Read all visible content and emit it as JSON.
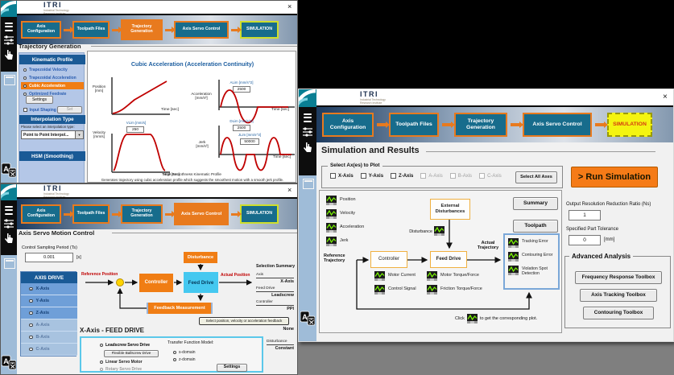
{
  "colors": {
    "accent_orange": "#E87A1E",
    "teal": "#176C8C",
    "navy_header": "#1A5A96",
    "feed_cyan": "#45C8F0",
    "sim_yellow": "#F4F410",
    "signal_red": "#CC0000",
    "plot_green": "#7CFC00"
  },
  "brand": {
    "name": "ITRI",
    "sub1": "Industrial Technology",
    "sub2": "Research Institute"
  },
  "nav": {
    "steps": [
      "Axis Configuration",
      "Toolpath Files",
      "Trajectory Generation",
      "Axis Servo Control",
      "SIMULATION"
    ]
  },
  "win": {
    "close": "×"
  },
  "win1": {
    "section_title": "Trajectory Generation",
    "sidebar": {
      "kinematic_header": "Kinematic Profile",
      "options": [
        {
          "label": "Trapezoidal Velocity"
        },
        {
          "label": "Trapezoidal Acceleration"
        },
        {
          "label": "Cubic Acceleration"
        },
        {
          "label": "Optimized Feedrate"
        }
      ],
      "settings_button": "Settings",
      "input_shaping": "Input Shaping",
      "set_button": "Set",
      "interpolation_header": "Interpolation Type",
      "interpolation_hint": "Please select an interpolation type:",
      "interpolation_value": "Point to Point Interpol...",
      "hsm_header": "HSM (Smoothing)"
    },
    "chart": {
      "title": "Cubic Acceleration (Acceleration Continuity)",
      "position_label": "Position",
      "position_unit": "[mm]",
      "acceleration_label": "Acceleration",
      "acceleration_unit": "[mm/s²]",
      "velocity_label": "Velocity",
      "velocity_unit": "[mm/s]",
      "jerk_label": "Jerk",
      "jerk_unit": "[mm/s³]",
      "time_label": "Time [sec]",
      "alim_label": "ALim [mm/s^2]",
      "alim_value": "2500",
      "dlim_label": "DLim [mm/s^2]",
      "dlim_value": "2500",
      "vlim_label": "VLim [mm/s]",
      "vlim_value": "250",
      "jlim_label": "JLim [mm/s^3]",
      "jlim_value": "50000",
      "footer_title": "High Smoothness Kinematic Profile",
      "footer_desc": "Generates trajectory using cubic acceleration profile which suggests the smoothest motion with a smooth jerk profile."
    }
  },
  "win2": {
    "section_title": "Axis Servo Motion Control",
    "sampling_label": "Control Sampling Period (Ts)",
    "sampling_value": "0.001",
    "sampling_unit": "[s]",
    "axis_header": "AXIS DRIVE",
    "axes": [
      "X-Axis",
      "Y-Axis",
      "Z-Axis",
      "A-Axis",
      "B-Axis",
      "C-Axis"
    ],
    "diagram": {
      "reference": "Reference Position",
      "controller": "Controller",
      "feed_drive": "Feed Drive",
      "actual": "Actual Position",
      "disturbance": "Disturbance",
      "feedback": "Feedback Measurement"
    },
    "summary": {
      "title": "Selection Summary",
      "axis_label": "Axis",
      "axis_value": "X-Axis",
      "feed_label": "Feed Drive",
      "feed_value": "Leadscrew",
      "controller_label": "Controller",
      "controller_value": "PPI",
      "feedback_button": "Select position, velocity or acceleration feedback",
      "feedback_value": "None",
      "disturbance_label": "Disturbance",
      "disturbance_value": "Constant"
    },
    "feed_section": {
      "title": "X-Axis - FEED DRIVE",
      "option1": "Leadscrew Servo Drive",
      "flexible_button": "Flexible Ballscrew Drive",
      "option2": "Linear Servo Motor",
      "option3": "Rotary Servo Drive",
      "tf_label": "Transfer Function Model:",
      "tf1": "s-domain",
      "tf2": "z-domain",
      "settings_button": "Settings"
    }
  },
  "win3": {
    "section_title": "Simulation and Results",
    "axes_group": {
      "title": "Select Ax(es) to Plot",
      "select_all": "Select All Axes",
      "axes": [
        "X-Axis",
        "Y-Axis",
        "Z-Axis",
        "A-Axis",
        "B-Axis",
        "C-Axis"
      ]
    },
    "run_button": "> Run Simulation",
    "summary_button": "Summary",
    "toolpath_button": "Toolpath",
    "diagram": {
      "signals": [
        "Position",
        "Velocity",
        "Acceleration",
        "Jerk"
      ],
      "reference": "Reference Trajectory",
      "external": "External Disturbances",
      "disturbance_label": "Disturbance",
      "controller": "Controller",
      "feed_drive": "Feed Drive",
      "actual": "Actual Trajectory",
      "outputs": [
        "Tracking Error",
        "Contouring Error",
        "Violation Spot Detection"
      ],
      "controller_signals": [
        "Motor Current",
        "Control Signal"
      ],
      "feed_signals": [
        "Motor Torque/Force",
        "Friction Torque/Force"
      ],
      "hint_pre": "Click",
      "hint_post": "to get the corresponding plot."
    },
    "resolution_label": "Output Resolution Reduction Ratio (Ns)",
    "resolution_value": "1",
    "tolerance_label": "Specified Part Tolerance",
    "tolerance_value": "0",
    "tolerance_unit": "[mm]",
    "advanced": {
      "title": "Advanced Analysis",
      "buttons": [
        "Frequency Response Toolbox",
        "Axis Tracking Toolbox",
        "Contouring Toolbox"
      ]
    }
  }
}
